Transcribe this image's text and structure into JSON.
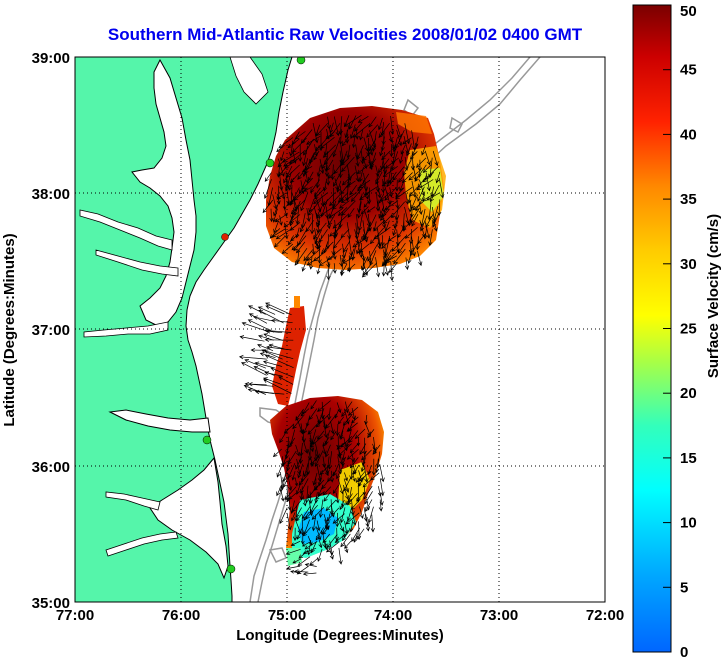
{
  "title": "Southern Mid-Atlantic Raw Velocities 2008/01/02 0400 GMT",
  "chart_data": {
    "type": "map",
    "xlabel": "Longitude (Degrees:Minutes)",
    "ylabel": "Latitude (Degrees:Minutes)",
    "x_ticks": [
      "77:00",
      "76:00",
      "75:00",
      "74:00",
      "73:00",
      "72:00"
    ],
    "y_ticks": [
      "39:00",
      "38:00",
      "37:00",
      "36:00",
      "35:00"
    ],
    "lon_range": [
      -77,
      -72
    ],
    "lat_range": [
      35,
      39
    ],
    "grid": "dotted",
    "colorbar": {
      "label": "Surface Velocity (cm/s)",
      "min": 0,
      "max": 50,
      "ticks": [
        "50",
        "45",
        "40",
        "35",
        "30",
        "25",
        "20",
        "15",
        "10",
        "5",
        "0"
      ],
      "colormap": "jet"
    },
    "colors": {
      "land": "#55f5aa",
      "water": "#ffffff",
      "coast": "#000000",
      "bathymetry": "#999999",
      "station_green": "#22cc22",
      "station_red": "#dd2200"
    }
  }
}
